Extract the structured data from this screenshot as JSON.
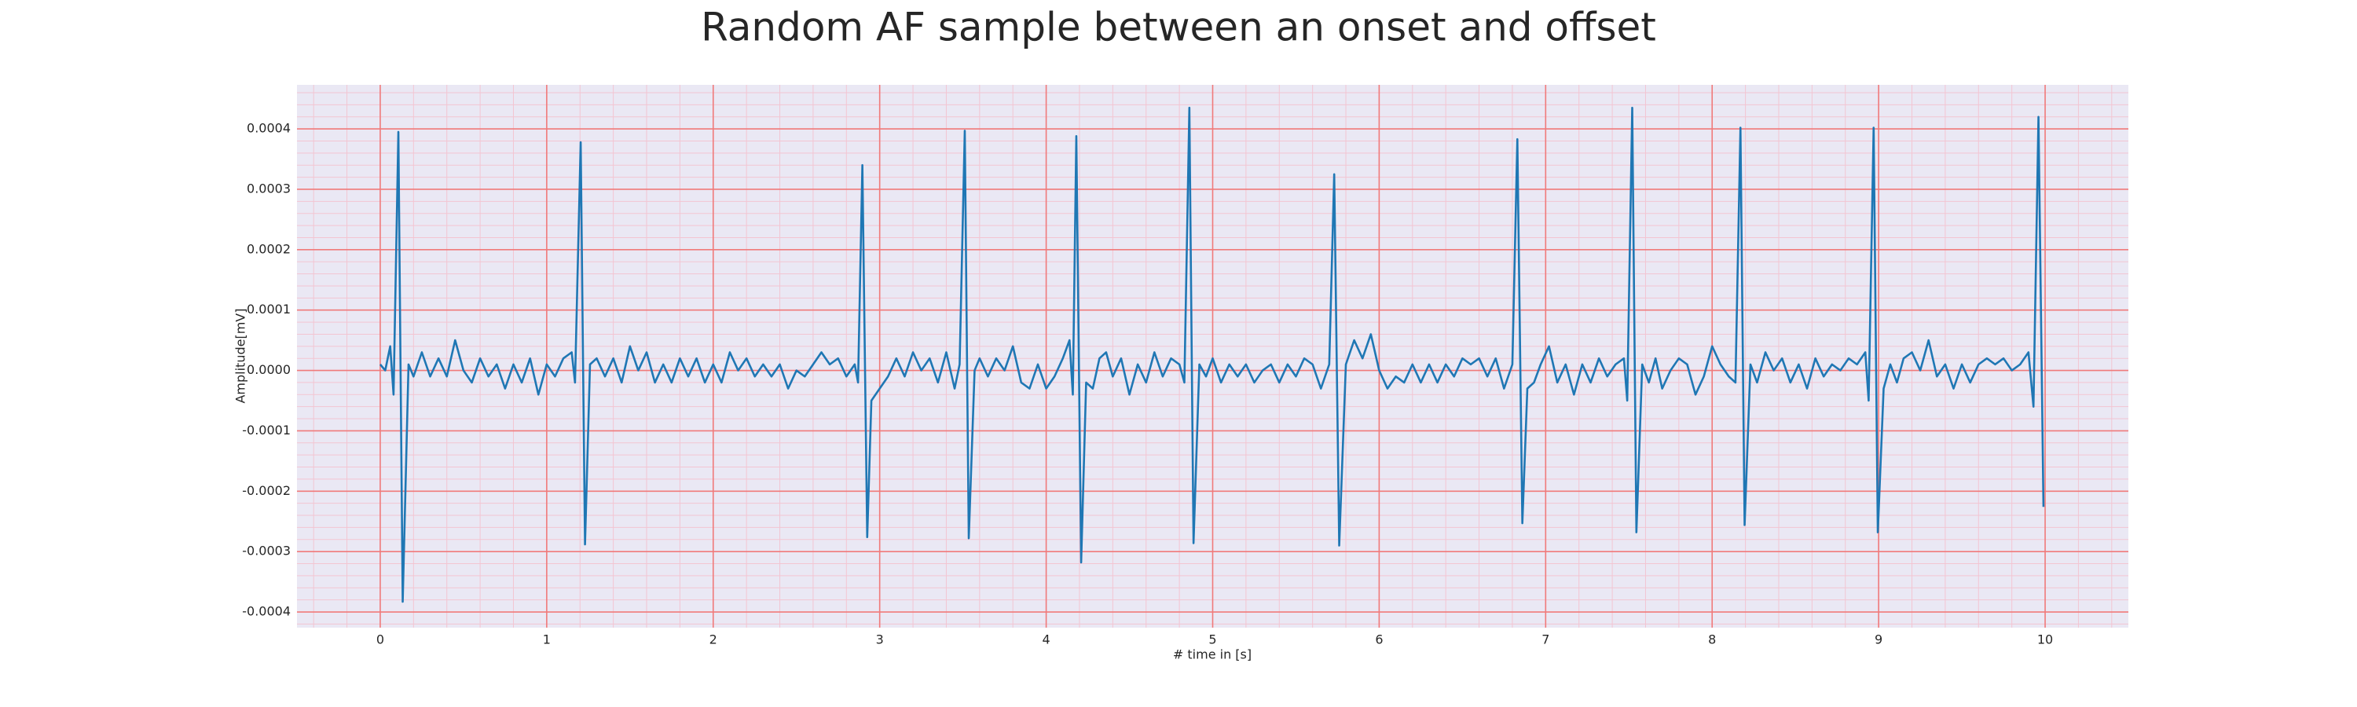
{
  "chart_data": {
    "type": "line",
    "title": "Random AF sample between an onset and offset",
    "xlabel": "# time in [s]",
    "ylabel": "Amplitude[mV]",
    "color": "#1f77b4",
    "background": "#eae8f4",
    "grid_color": "#f07a7a",
    "minor_grid_color": "#f3c5d2",
    "grid": true,
    "minor_grid": true,
    "xlim": [
      -0.5,
      10.5
    ],
    "ylim": [
      -0.000426,
      0.000473
    ],
    "xticks": [
      0,
      1,
      2,
      3,
      4,
      5,
      6,
      7,
      8,
      9,
      10
    ],
    "yticks": [
      -0.0004,
      -0.0003,
      -0.0002,
      -0.0001,
      {
        "value": 0,
        "label": "0.0000"
      },
      0.0001,
      0.0002,
      0.0003,
      0.0004
    ],
    "x": [
      0.0,
      0.03,
      0.06,
      0.08,
      0.109,
      0.135,
      0.17,
      0.2,
      0.25,
      0.3,
      0.35,
      0.4,
      0.45,
      0.5,
      0.55,
      0.6,
      0.65,
      0.7,
      0.75,
      0.8,
      0.85,
      0.9,
      0.95,
      1.0,
      1.05,
      1.1,
      1.15,
      1.17,
      1.204,
      1.23,
      1.26,
      1.3,
      1.35,
      1.4,
      1.45,
      1.5,
      1.55,
      1.6,
      1.65,
      1.7,
      1.75,
      1.8,
      1.85,
      1.9,
      1.95,
      2.0,
      2.05,
      2.1,
      2.15,
      2.2,
      2.25,
      2.3,
      2.35,
      2.4,
      2.45,
      2.5,
      2.55,
      2.6,
      2.65,
      2.7,
      2.75,
      2.8,
      2.85,
      2.87,
      2.896,
      2.925,
      2.95,
      3.0,
      3.05,
      3.1,
      3.15,
      3.2,
      3.25,
      3.3,
      3.35,
      3.4,
      3.45,
      3.48,
      3.511,
      3.535,
      3.57,
      3.6,
      3.65,
      3.7,
      3.75,
      3.8,
      3.85,
      3.9,
      3.95,
      4.0,
      4.05,
      4.1,
      4.14,
      4.16,
      4.181,
      4.21,
      4.24,
      4.28,
      4.32,
      4.36,
      4.4,
      4.45,
      4.5,
      4.55,
      4.6,
      4.65,
      4.7,
      4.75,
      4.8,
      4.83,
      4.86,
      4.885,
      4.92,
      4.96,
      5.0,
      5.05,
      5.1,
      5.15,
      5.2,
      5.25,
      5.3,
      5.35,
      5.4,
      5.45,
      5.5,
      5.55,
      5.6,
      5.65,
      5.7,
      5.73,
      5.76,
      5.8,
      5.85,
      5.9,
      5.95,
      6.0,
      6.05,
      6.1,
      6.15,
      6.2,
      6.25,
      6.3,
      6.35,
      6.4,
      6.45,
      6.5,
      6.55,
      6.6,
      6.65,
      6.7,
      6.75,
      6.8,
      6.83,
      6.86,
      6.89,
      6.93,
      6.97,
      7.02,
      7.07,
      7.12,
      7.17,
      7.22,
      7.27,
      7.32,
      7.37,
      7.42,
      7.47,
      7.49,
      7.52,
      7.545,
      7.58,
      7.62,
      7.66,
      7.7,
      7.75,
      7.8,
      7.85,
      7.9,
      7.95,
      8.0,
      8.05,
      8.1,
      8.14,
      8.17,
      8.195,
      8.23,
      8.27,
      8.32,
      8.37,
      8.42,
      8.47,
      8.52,
      8.57,
      8.62,
      8.67,
      8.72,
      8.77,
      8.82,
      8.87,
      8.92,
      8.94,
      8.97,
      8.995,
      9.03,
      9.07,
      9.11,
      9.15,
      9.2,
      9.25,
      9.3,
      9.35,
      9.4,
      9.45,
      9.5,
      9.55,
      9.6,
      9.65,
      9.7,
      9.75,
      9.8,
      9.85,
      9.9,
      9.93,
      9.96,
      9.99
    ],
    "values": [
      1e-05,
      0.0,
      4e-05,
      -4e-05,
      0.000395,
      -0.000383,
      1e-05,
      -1e-05,
      3e-05,
      -1e-05,
      2e-05,
      -1e-05,
      5e-05,
      0.0,
      -2e-05,
      2e-05,
      -1e-05,
      1e-05,
      -3e-05,
      1e-05,
      -2e-05,
      2e-05,
      -4e-05,
      1e-05,
      -1e-05,
      2e-05,
      3e-05,
      -2e-05,
      0.000378,
      -0.000288,
      1e-05,
      2e-05,
      -1e-05,
      2e-05,
      -2e-05,
      4e-05,
      0.0,
      3e-05,
      -2e-05,
      1e-05,
      -2e-05,
      2e-05,
      -1e-05,
      2e-05,
      -2e-05,
      1e-05,
      -2e-05,
      3e-05,
      0.0,
      2e-05,
      -1e-05,
      1e-05,
      -1e-05,
      1e-05,
      -3e-05,
      0.0,
      -1e-05,
      1e-05,
      3e-05,
      1e-05,
      2e-05,
      -1e-05,
      1e-05,
      -2e-05,
      0.00034,
      -0.000276,
      -5e-05,
      -3e-05,
      -1e-05,
      2e-05,
      -1e-05,
      3e-05,
      0.0,
      2e-05,
      -2e-05,
      3e-05,
      -3e-05,
      1e-05,
      0.000397,
      -0.000278,
      0.0,
      2e-05,
      -1e-05,
      2e-05,
      0.0,
      4e-05,
      -2e-05,
      -3e-05,
      1e-05,
      -3e-05,
      -1e-05,
      2e-05,
      5e-05,
      -4e-05,
      0.000388,
      -0.000318,
      -2e-05,
      -3e-05,
      2e-05,
      3e-05,
      -1e-05,
      2e-05,
      -4e-05,
      1e-05,
      -2e-05,
      3e-05,
      -1e-05,
      2e-05,
      1e-05,
      -2e-05,
      0.000435,
      -0.000286,
      1e-05,
      -1e-05,
      2e-05,
      -2e-05,
      1e-05,
      -1e-05,
      1e-05,
      -2e-05,
      0.0,
      1e-05,
      -2e-05,
      1e-05,
      -1e-05,
      2e-05,
      1e-05,
      -3e-05,
      1e-05,
      0.000325,
      -0.00029,
      1e-05,
      5e-05,
      2e-05,
      6e-05,
      0.0,
      -3e-05,
      -1e-05,
      -2e-05,
      1e-05,
      -2e-05,
      1e-05,
      -2e-05,
      1e-05,
      -1e-05,
      2e-05,
      1e-05,
      2e-05,
      -1e-05,
      2e-05,
      -3e-05,
      1e-05,
      0.000383,
      -0.000253,
      -3e-05,
      -2e-05,
      1e-05,
      4e-05,
      -2e-05,
      1e-05,
      -4e-05,
      1e-05,
      -2e-05,
      2e-05,
      -1e-05,
      1e-05,
      2e-05,
      -5e-05,
      0.000435,
      -0.000268,
      1e-05,
      -2e-05,
      2e-05,
      -3e-05,
      0.0,
      2e-05,
      1e-05,
      -4e-05,
      -1e-05,
      4e-05,
      1e-05,
      -1e-05,
      -2e-05,
      0.000402,
      -0.000256,
      1e-05,
      -2e-05,
      3e-05,
      0.0,
      2e-05,
      -2e-05,
      1e-05,
      -3e-05,
      2e-05,
      -1e-05,
      1e-05,
      0.0,
      2e-05,
      1e-05,
      3e-05,
      -5e-05,
      0.000402,
      -0.000268,
      -3e-05,
      1e-05,
      -2e-05,
      2e-05,
      3e-05,
      0.0,
      5e-05,
      -1e-05,
      1e-05,
      -3e-05,
      1e-05,
      -2e-05,
      1e-05,
      2e-05,
      1e-05,
      2e-05,
      0.0,
      1e-05,
      3e-05,
      -6e-05,
      0.00042,
      -0.000226
    ]
  }
}
